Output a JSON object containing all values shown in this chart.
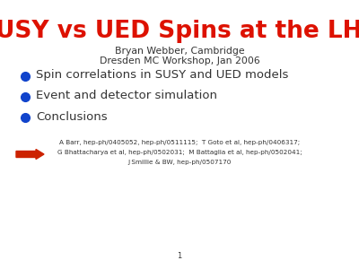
{
  "title": "SUSY vs UED Spins at the LHC",
  "title_color": "#dd1100",
  "subtitle_line1": "Bryan Webber, Cambridge",
  "subtitle_line2": "Dresden MC Workshop, Jan 2006",
  "bullet_items": [
    "Spin correlations in SUSY and UED models",
    "Event and detector simulation",
    "Conclusions"
  ],
  "bullet_color": "#1144cc",
  "references_line1": "A Barr, hep-ph/0405052, hep-ph/0511115;  T Goto et al, hep-ph/0406317;",
  "references_line2": "G Bhattacharya et al, hep-ph/0502031;  M Battaglia et al, hep-ph/0502041;",
  "references_line3": "J Smillie & BW, hep-ph/0507170",
  "arrow_color": "#cc2200",
  "page_number": "1",
  "background_color": "#ffffff",
  "text_color": "#333333"
}
